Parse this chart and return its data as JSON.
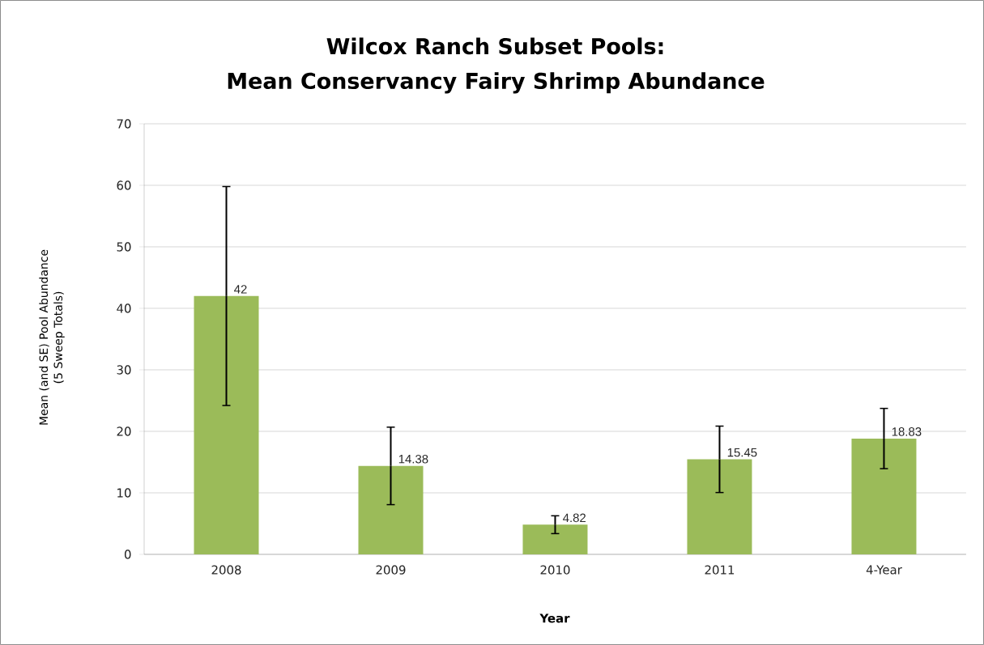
{
  "chart_data": {
    "type": "bar",
    "title": "Wilcox Ranch Subset Pools:\nMean Conservancy Fairy Shrimp Abundance",
    "xlabel": "Year",
    "ylabel": "Mean (and SE) Pool Abundance\n(5 Sweep Totals)",
    "categories": [
      "2008",
      "2009",
      "2010",
      "2011",
      "4-Year"
    ],
    "values": [
      42,
      14.38,
      4.82,
      15.45,
      18.83
    ],
    "errors": [
      17.8,
      6.3,
      1.45,
      5.4,
      4.9
    ],
    "value_labels": [
      "42",
      "14.38",
      "4.82",
      "15.45",
      "18.83"
    ],
    "color": "#9bbb59",
    "ylim": [
      0,
      70
    ],
    "yticks": [
      0,
      10,
      20,
      30,
      40,
      50,
      60,
      70
    ],
    "grid": "y"
  }
}
